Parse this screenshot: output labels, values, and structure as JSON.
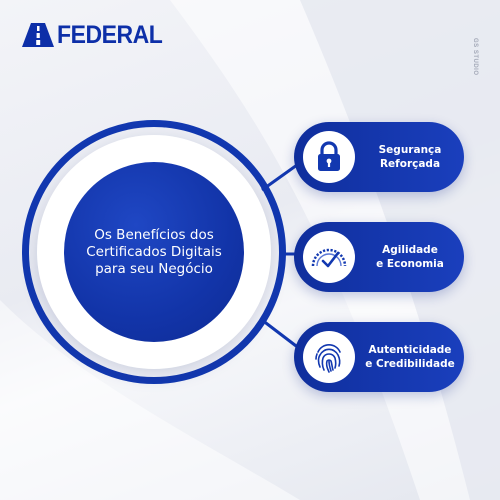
{
  "brand": {
    "name": "FEDERAL",
    "watermark": "GS STUDIO",
    "colors": {
      "primary": "#1238b0",
      "dark": "#0e2b94",
      "background": "#eef0f5"
    }
  },
  "center": {
    "title": "Os Benefícios dos\nCertificados Digitais\npara seu Negócio"
  },
  "benefits": [
    {
      "icon": "padlock-icon",
      "label": "Segurança\nReforçada"
    },
    {
      "icon": "speedometer-icon",
      "label": "Agilidade\ne Economia"
    },
    {
      "icon": "fingerprint-icon",
      "label": "Autenticidade\ne Credibilidade"
    }
  ]
}
